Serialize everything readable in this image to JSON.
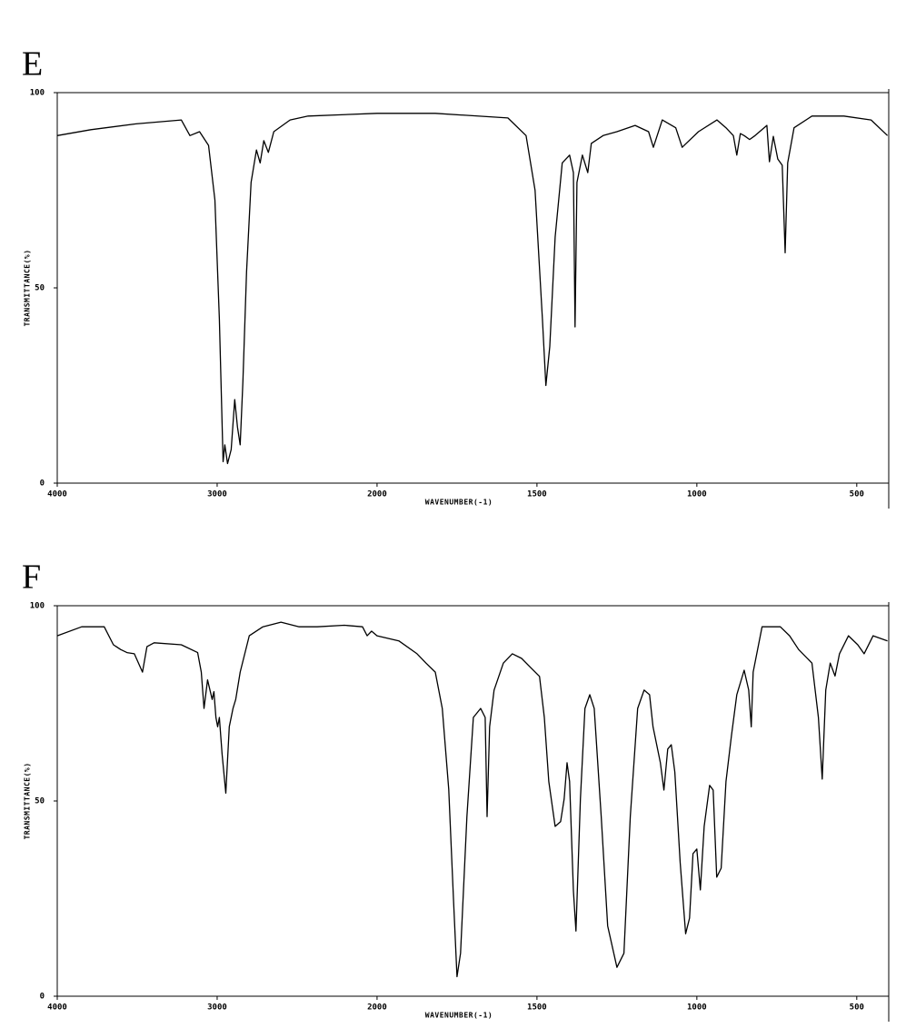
{
  "chart_data": [
    {
      "type": "line",
      "title": "E",
      "xlabel": "WAVENUMBER(-1)",
      "ylabel": "TRANSMITTANCE(%)",
      "color": "#000000",
      "xlim": [
        4000,
        400
      ],
      "xticks": [
        4000,
        3000,
        2000,
        1500,
        1000,
        500
      ],
      "ylim": [
        0,
        100
      ],
      "yticks": [
        0,
        50,
        100
      ],
      "x": [
        4000,
        3790,
        3507,
        3224,
        3170,
        3110,
        3054,
        3014,
        2986,
        2963,
        2952,
        2935,
        2912,
        2890,
        2873,
        2856,
        2839,
        2816,
        2788,
        2754,
        2731,
        2708,
        2680,
        2646,
        2544,
        2431,
        2000,
        1818,
        1591,
        1534,
        1506,
        1483,
        1472,
        1460,
        1443,
        1421,
        1398,
        1386,
        1381,
        1375,
        1358,
        1341,
        1330,
        1293,
        1250,
        1193,
        1151,
        1136,
        1108,
        1066,
        1046,
        995,
        937,
        909,
        886,
        875,
        864,
        852,
        835,
        818,
        781,
        773,
        761,
        747,
        733,
        724,
        716,
        696,
        640,
        540,
        455,
        404
      ],
      "values": [
        89,
        90.5,
        92,
        93,
        89,
        90,
        86.5,
        72.5,
        42,
        5.5,
        9.8,
        5,
        8.6,
        21.4,
        14.4,
        9.8,
        26,
        54,
        77,
        85.3,
        82,
        87.7,
        84.7,
        90,
        93,
        94,
        94.7,
        94.7,
        93.5,
        89,
        75,
        42,
        25,
        35,
        63,
        82,
        84,
        79.5,
        40,
        77,
        84,
        79.5,
        87,
        89,
        90,
        91.6,
        90,
        86,
        93,
        91,
        86,
        90,
        93,
        91,
        89,
        84,
        89.5,
        89,
        88,
        89,
        91.6,
        82.3,
        88.8,
        83,
        81.4,
        59,
        82,
        91,
        94,
        94,
        93,
        89
      ]
    },
    {
      "type": "line",
      "title": "F",
      "xlabel": "WAVENUMBER(-1)",
      "ylabel": "TRANSMITTANCE(%)",
      "color": "#000000",
      "xlim": [
        4000,
        400
      ],
      "xticks": [
        4000,
        3000,
        2000,
        1500,
        1000,
        500
      ],
      "ylim": [
        0,
        100
      ],
      "yticks": [
        0,
        50,
        100
      ],
      "x": [
        4000,
        3847,
        3706,
        3649,
        3604,
        3564,
        3518,
        3467,
        3439,
        3394,
        3224,
        3122,
        3099,
        3082,
        3060,
        3031,
        3020,
        3008,
        2997,
        2986,
        2969,
        2946,
        2924,
        2901,
        2884,
        2856,
        2799,
        2714,
        2601,
        2487,
        2374,
        2204,
        2091,
        2062,
        2034,
        2000,
        1932,
        1875,
        1847,
        1818,
        1796,
        1776,
        1761,
        1750,
        1739,
        1719,
        1699,
        1676,
        1662,
        1656,
        1648,
        1634,
        1605,
        1577,
        1548,
        1520,
        1492,
        1477,
        1463,
        1443,
        1426,
        1415,
        1406,
        1398,
        1386,
        1378,
        1364,
        1350,
        1335,
        1321,
        1299,
        1279,
        1250,
        1228,
        1208,
        1185,
        1165,
        1148,
        1137,
        1114,
        1103,
        1091,
        1080,
        1069,
        1052,
        1035,
        1023,
        1012,
        1000,
        989,
        977,
        960,
        949,
        938,
        924,
        909,
        892,
        875,
        852,
        838,
        830,
        824,
        796,
        739,
        710,
        682,
        640,
        620,
        608,
        597,
        583,
        568,
        554,
        526,
        497,
        477,
        449,
        404
      ],
      "values": [
        92.3,
        94.6,
        94.6,
        90,
        88.8,
        88,
        87.7,
        83,
        89.5,
        90.5,
        90,
        88,
        83,
        73.7,
        81,
        76,
        78,
        71.4,
        69,
        71.4,
        62,
        52,
        69,
        73.7,
        76,
        83,
        92.3,
        94.6,
        95.8,
        94.6,
        94.6,
        95,
        94.6,
        92.3,
        93.5,
        92.3,
        91,
        87.7,
        85.3,
        83,
        73.7,
        53,
        25,
        5,
        11,
        46,
        71.4,
        73.7,
        71.4,
        46,
        69,
        78.4,
        85.3,
        87.7,
        86.5,
        84.2,
        81.9,
        71.4,
        55,
        43.5,
        44.7,
        50.5,
        59.8,
        55,
        27,
        16.7,
        50.5,
        73.7,
        77.2,
        73.7,
        46,
        18,
        7.4,
        11,
        46,
        73.7,
        78.4,
        77.2,
        69,
        59.8,
        52.8,
        63.3,
        64.4,
        57.4,
        34.2,
        16,
        20,
        36.5,
        37.7,
        27.2,
        43.5,
        54,
        52.8,
        30.5,
        32.8,
        55,
        66.7,
        77.2,
        83.5,
        78.4,
        69,
        83,
        94.6,
        94.6,
        92.3,
        88.8,
        85.3,
        71.4,
        55.6,
        78.4,
        85.3,
        82,
        87.7,
        92.3,
        90,
        87.7,
        92.3,
        91
      ]
    }
  ]
}
